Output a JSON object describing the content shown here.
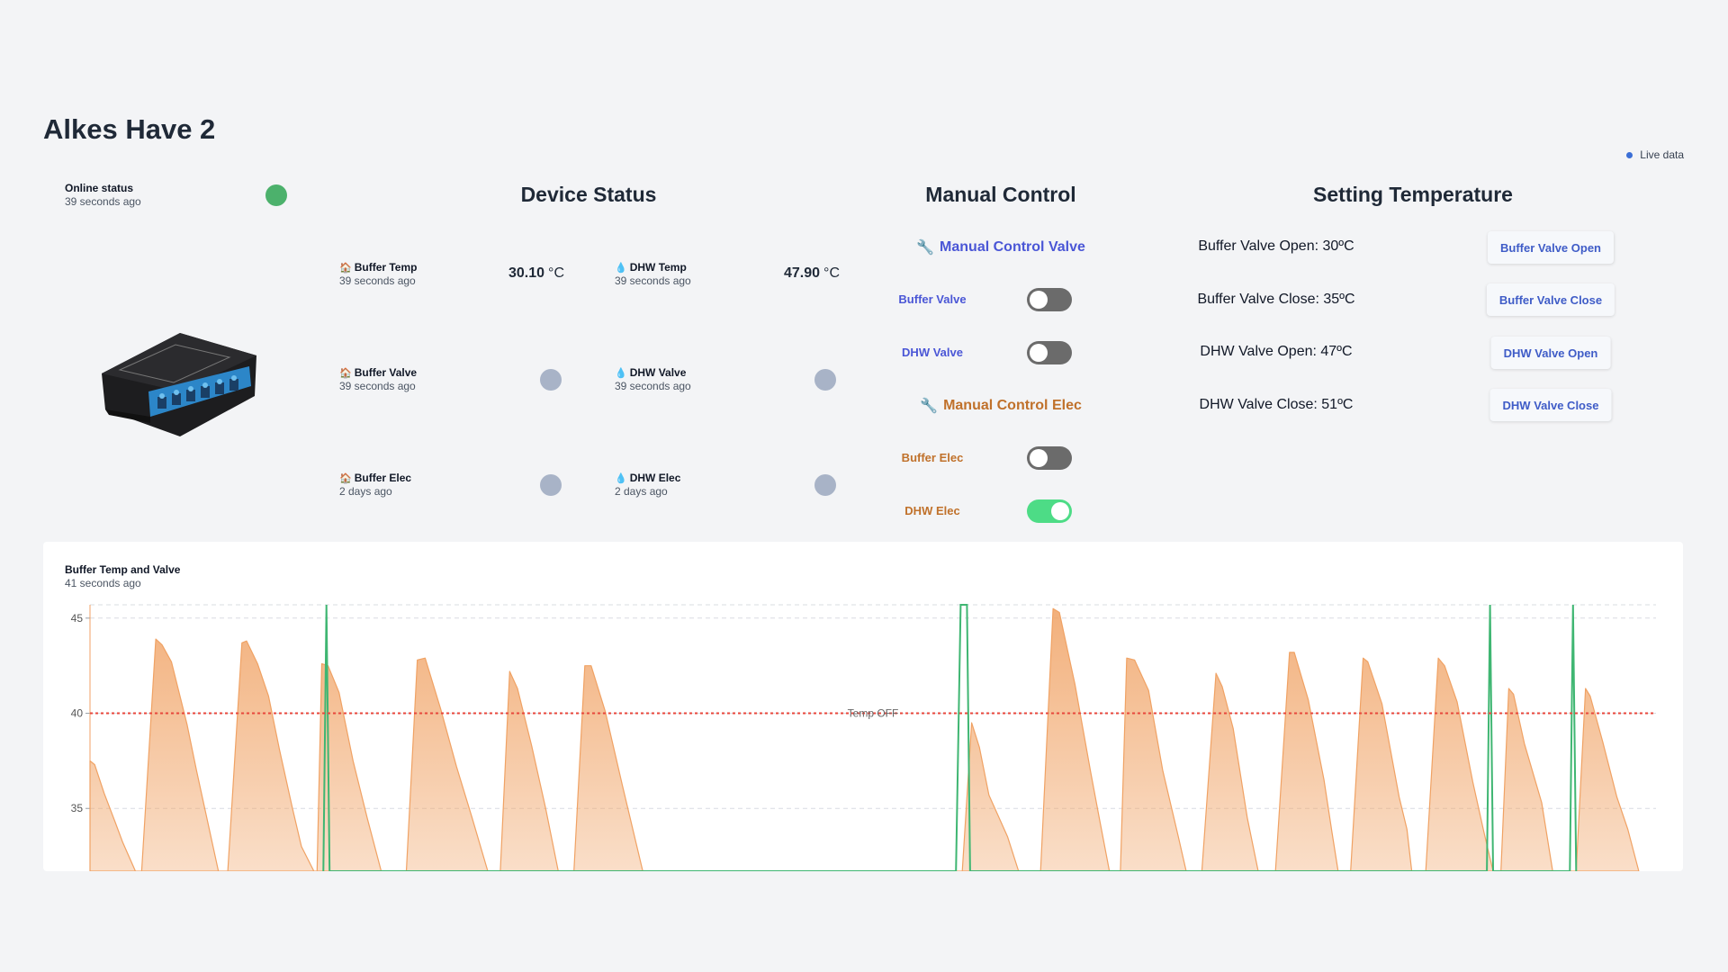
{
  "page": {
    "title": "Alkes Have 2",
    "live_label": "Live data"
  },
  "online": {
    "label": "Online status",
    "ago": "39 seconds ago",
    "status_color": "#4cb16c"
  },
  "device_image": {
    "icon": "relay-module-device"
  },
  "device_status": {
    "title": "Device Status",
    "items": [
      {
        "icon": "house-icon",
        "name": "Buffer Temp",
        "ago": "39 seconds ago",
        "value": "30.10",
        "unit": "°C"
      },
      {
        "icon": "droplet-icon",
        "name": "DHW Temp",
        "ago": "39 seconds ago",
        "value": "47.90",
        "unit": "°C"
      },
      {
        "icon": "house-icon",
        "name": "Buffer Valve",
        "ago": "39 seconds ago",
        "state": "off"
      },
      {
        "icon": "droplet-icon",
        "name": "DHW Valve",
        "ago": "39 seconds ago",
        "state": "off"
      },
      {
        "icon": "house-icon",
        "name": "Buffer Elec",
        "ago": "2 days ago",
        "state": "off"
      },
      {
        "icon": "droplet-icon",
        "name": "DHW Elec",
        "ago": "2 days ago",
        "state": "off"
      }
    ]
  },
  "manual_control": {
    "title": "Manual Control",
    "valve_heading": "Manual Control Valve",
    "elec_heading": "Manual Control Elec",
    "toggles": [
      {
        "label": "Buffer Valve",
        "on": false
      },
      {
        "label": "DHW Valve",
        "on": false
      },
      {
        "label": "Buffer Elec",
        "on": false
      },
      {
        "label": "DHW Elec",
        "on": true
      }
    ]
  },
  "setting_temperature": {
    "title": "Setting Temperature",
    "rows": [
      {
        "text": "Buffer Valve Open: 30ºC",
        "button": "Buffer Valve Open"
      },
      {
        "text": "Buffer Valve Close: 35ºC",
        "button": "Buffer Valve Close"
      },
      {
        "text": "DHW Valve Open: 47ºC",
        "button": "DHW Valve Open"
      },
      {
        "text": "DHW Valve Close: 51ºC",
        "button": "DHW Valve Close"
      }
    ]
  },
  "chart_card": {
    "title": "Buffer Temp and Valve",
    "ago": "41 seconds ago"
  },
  "chart_data": {
    "type": "area",
    "title": "Buffer Temp and Valve",
    "xlabel": "",
    "ylabel": "",
    "yticks": [
      35,
      40,
      45
    ],
    "ylim": [
      31.7,
      45.7
    ],
    "xlim": [
      0,
      100
    ],
    "grid": true,
    "threshold": {
      "label": "Temp OFF",
      "value": 40,
      "color": "#e8473c"
    },
    "series": [
      {
        "color": "#f0a264",
        "points": [
          [
            0,
            37.5
          ],
          [
            0.3,
            37.3
          ],
          [
            0.9,
            35.8
          ],
          [
            1.6,
            34.3
          ],
          [
            2.1,
            33.2
          ],
          [
            2.9,
            31.7
          ],
          [
            2.9,
            31.7
          ],
          [
            3.3,
            31.7
          ],
          [
            4.2,
            43.9
          ],
          [
            4.6,
            43.6
          ],
          [
            5.2,
            42.7
          ],
          [
            6.2,
            39.4
          ],
          [
            6.8,
            37.0
          ],
          [
            8.2,
            31.7
          ],
          [
            8.8,
            31.7
          ],
          [
            9.7,
            43.7
          ],
          [
            10.0,
            43.8
          ],
          [
            10.7,
            42.6
          ],
          [
            11.4,
            40.9
          ],
          [
            12.1,
            38.1
          ],
          [
            12.9,
            35.1
          ],
          [
            13.5,
            33.0
          ],
          [
            14.3,
            31.7
          ],
          [
            14.5,
            31.7
          ],
          [
            14.8,
            42.6
          ],
          [
            15.2,
            42.5
          ],
          [
            15.9,
            41.1
          ],
          [
            16.8,
            37.5
          ],
          [
            17.7,
            34.5
          ],
          [
            18.6,
            31.7
          ],
          [
            20.2,
            31.7
          ],
          [
            20.9,
            42.8
          ],
          [
            21.4,
            42.9
          ],
          [
            22.4,
            40.2
          ],
          [
            23.4,
            37.2
          ],
          [
            24.4,
            34.5
          ],
          [
            25.4,
            31.7
          ],
          [
            26.2,
            31.7
          ],
          [
            26.8,
            42.2
          ],
          [
            27.3,
            41.3
          ],
          [
            28.2,
            38.3
          ],
          [
            29.1,
            35.0
          ],
          [
            29.9,
            31.7
          ],
          [
            30.9,
            31.7
          ],
          [
            31.6,
            42.5
          ],
          [
            32.0,
            42.5
          ],
          [
            32.9,
            40.1
          ],
          [
            34.0,
            36.2
          ],
          [
            35.3,
            31.7
          ],
          [
            55.7,
            31.7
          ],
          [
            56.3,
            39.5
          ],
          [
            56.8,
            38.2
          ],
          [
            57.4,
            35.7
          ],
          [
            58.6,
            33.5
          ],
          [
            59.3,
            31.7
          ],
          [
            60.7,
            31.7
          ],
          [
            61.5,
            45.5
          ],
          [
            61.9,
            45.3
          ],
          [
            62.9,
            41.5
          ],
          [
            63.9,
            36.9
          ],
          [
            64.4,
            34.7
          ],
          [
            65.1,
            31.7
          ],
          [
            65.8,
            31.7
          ],
          [
            66.2,
            42.9
          ],
          [
            66.7,
            42.8
          ],
          [
            67.6,
            41.2
          ],
          [
            68.5,
            37.0
          ],
          [
            69.5,
            33.5
          ],
          [
            70.0,
            31.7
          ],
          [
            71.0,
            31.7
          ],
          [
            71.9,
            42.1
          ],
          [
            72.3,
            41.4
          ],
          [
            73.0,
            39.2
          ],
          [
            73.9,
            34.5
          ],
          [
            74.6,
            31.7
          ],
          [
            75.7,
            31.7
          ],
          [
            76.6,
            43.2
          ],
          [
            76.9,
            43.2
          ],
          [
            77.8,
            40.7
          ],
          [
            78.8,
            36.5
          ],
          [
            79.3,
            33.8
          ],
          [
            79.7,
            31.7
          ],
          [
            80.5,
            31.7
          ],
          [
            81.3,
            42.9
          ],
          [
            81.6,
            42.7
          ],
          [
            82.5,
            40.5
          ],
          [
            83.6,
            35.6
          ],
          [
            84.1,
            33.9
          ],
          [
            84.4,
            31.7
          ],
          [
            85.3,
            31.7
          ],
          [
            86.1,
            42.9
          ],
          [
            86.5,
            42.5
          ],
          [
            87.3,
            40.6
          ],
          [
            88.3,
            36.4
          ],
          [
            89.0,
            33.8
          ],
          [
            89.6,
            31.7
          ],
          [
            90.1,
            31.7
          ],
          [
            90.6,
            41.3
          ],
          [
            90.9,
            41.0
          ],
          [
            91.6,
            38.4
          ],
          [
            92.7,
            35.3
          ],
          [
            93.4,
            31.7
          ],
          [
            94.9,
            31.7
          ],
          [
            95.5,
            41.3
          ],
          [
            95.8,
            40.9
          ],
          [
            96.6,
            38.5
          ],
          [
            97.5,
            35.6
          ],
          [
            98.2,
            33.9
          ],
          [
            98.9,
            31.7
          ]
        ]
      },
      {
        "color": "#3fb672",
        "points": [
          [
            14.9,
            31.7
          ],
          [
            15.1,
            45.7
          ],
          [
            15.3,
            31.7
          ],
          [
            55.3,
            31.7
          ],
          [
            55.6,
            45.7
          ],
          [
            56.0,
            45.7
          ],
          [
            56.2,
            31.7
          ],
          [
            89.2,
            31.7
          ],
          [
            89.4,
            45.7
          ],
          [
            89.6,
            31.7
          ],
          [
            94.5,
            31.7
          ],
          [
            94.7,
            45.7
          ],
          [
            94.9,
            31.7
          ]
        ]
      }
    ]
  }
}
